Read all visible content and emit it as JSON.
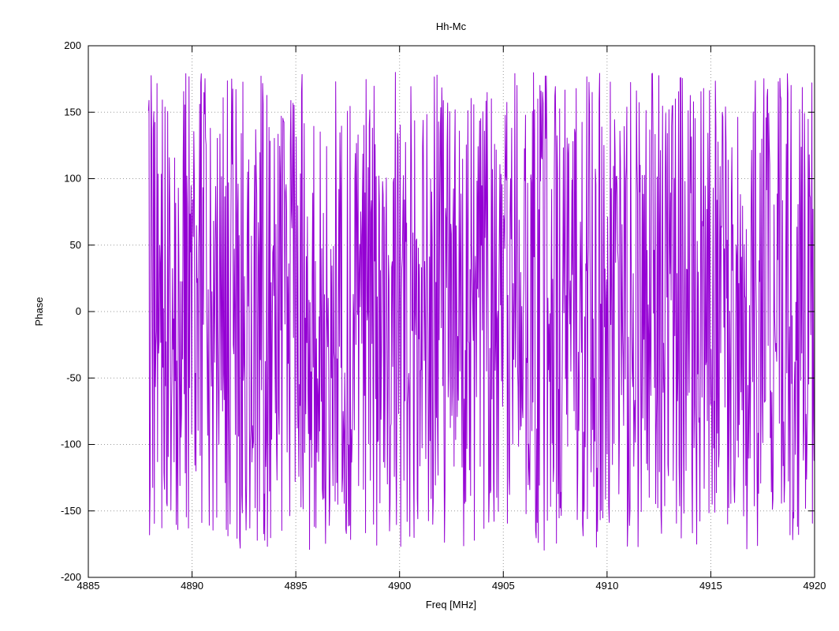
{
  "window": {
    "background": "#ffffff"
  },
  "chart_data": {
    "type": "line",
    "title": "Hh-Mc",
    "xlabel": "Freq [MHz]",
    "ylabel": "Phase",
    "xlim": [
      4885,
      4920
    ],
    "ylim": [
      -200,
      200
    ],
    "x_ticks": [
      4885,
      4890,
      4895,
      4900,
      4905,
      4910,
      4915,
      4920
    ],
    "y_ticks": [
      -200,
      -150,
      -100,
      -50,
      0,
      50,
      100,
      150,
      200
    ],
    "grid": {
      "show": true,
      "color": "#9a9a9a",
      "style": "dotted"
    },
    "legend": "none",
    "border_color": "#000000",
    "series": [
      {
        "name": "Hh-Mc",
        "color": "#9400d3",
        "line_width": 1,
        "style": "lines",
        "x_start": 4887.9,
        "x_end": 4920.0,
        "n_points": 1250,
        "y_distribution": "uniform-random-phase",
        "y_min": -180,
        "y_max": 180,
        "seed": 871230
      }
    ]
  }
}
